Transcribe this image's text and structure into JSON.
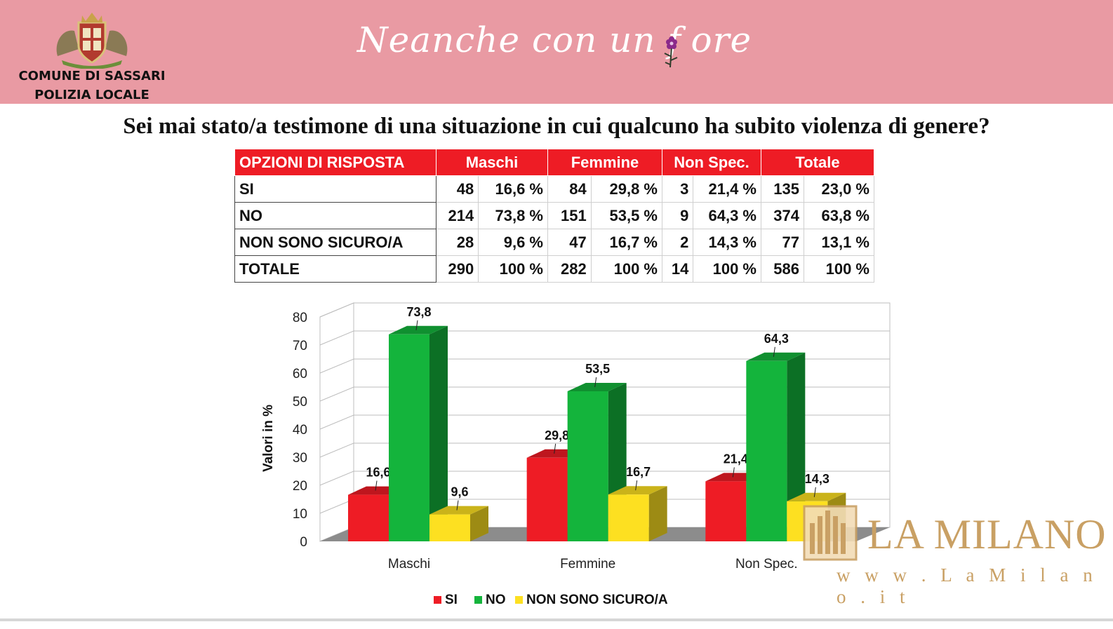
{
  "header": {
    "org_line1": "COMUNE DI SASSARI",
    "org_line2": "POLIZIA LOCALE",
    "slogan": "Neanche con un f ore"
  },
  "question": "Sei mai stato/a testimone di una situazione in cui qualcuno ha subito violenza di genere?",
  "table": {
    "headers": [
      "OPZIONI DI RISPOSTA",
      "Maschi",
      "Femmine",
      "Non Spec.",
      "Totale"
    ],
    "rows": [
      {
        "label": "SI",
        "cells": [
          "48",
          "16,6 %",
          "84",
          "29,8 %",
          "3",
          "21,4 %",
          "135",
          "23,0 %"
        ]
      },
      {
        "label": "NO",
        "cells": [
          "214",
          "73,8 %",
          "151",
          "53,5 %",
          "9",
          "64,3 %",
          "374",
          "63,8 %"
        ]
      },
      {
        "label": "NON SONO SICURO/A",
        "cells": [
          "28",
          "9,6 %",
          "47",
          "16,7 %",
          "2",
          "14,3 %",
          "77",
          "13,1 %"
        ]
      },
      {
        "label": "TOTALE",
        "cells": [
          "290",
          "100 %",
          "282",
          "100 %",
          "14",
          "100 %",
          "586",
          "100 %"
        ]
      }
    ]
  },
  "chart_data": {
    "type": "bar",
    "categories": [
      "Maschi",
      "Femmine",
      "Non Spec."
    ],
    "series": [
      {
        "name": "SI",
        "color": "#ee1c25",
        "values": [
          16.6,
          29.8,
          21.4
        ],
        "labels": [
          "16,6",
          "29,8",
          "21,4"
        ]
      },
      {
        "name": "NO",
        "color": "#14b43c",
        "values": [
          73.8,
          53.5,
          64.3
        ],
        "labels": [
          "73,8",
          "53,5",
          "64,3"
        ]
      },
      {
        "name": "NON SONO SICURO/A",
        "color": "#fde021",
        "values": [
          9.6,
          16.7,
          14.3
        ],
        "labels": [
          "9,6",
          "16,7",
          "14,3"
        ]
      }
    ],
    "ylabel": "Valori in %",
    "ylim": [
      0,
      80
    ],
    "yticks": [
      "0",
      "10",
      "20",
      "30",
      "40",
      "50",
      "60",
      "70",
      "80"
    ],
    "grid": true,
    "legend_position": "bottom",
    "style": "3d"
  },
  "watermark": {
    "name": "LA MILANO",
    "url": "w w w . L a M i l a n o . i t"
  }
}
